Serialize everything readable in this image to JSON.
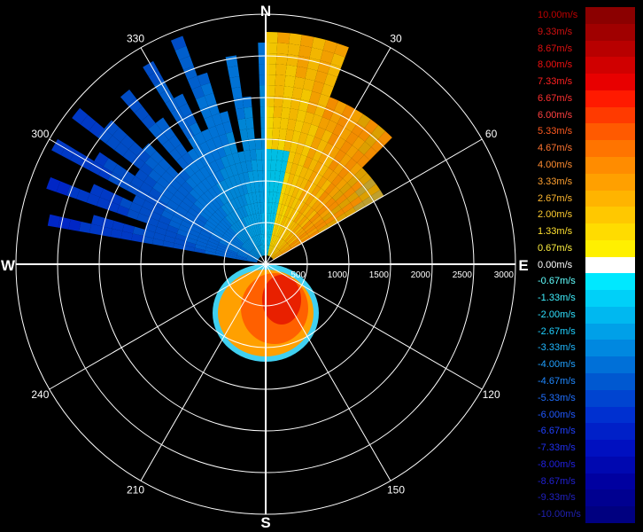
{
  "chart_data": {
    "type": "polar-radar",
    "compass": {
      "N": "N",
      "E": "E",
      "S": "S",
      "W": "W"
    },
    "angle_labels": [
      {
        "deg": 30,
        "text": "30"
      },
      {
        "deg": 60,
        "text": "60"
      },
      {
        "deg": 120,
        "text": "120"
      },
      {
        "deg": 150,
        "text": "150"
      },
      {
        "deg": 210,
        "text": "210"
      },
      {
        "deg": 240,
        "text": "240"
      },
      {
        "deg": 300,
        "text": "300"
      },
      {
        "deg": 330,
        "text": "330"
      }
    ],
    "range_ticks": [
      500,
      1000,
      1500,
      2000,
      2500,
      3000
    ],
    "range_max": 3000,
    "grid": true,
    "legend_position": "right",
    "legend": [
      {
        "label": "10.00m/s",
        "color": "#8b0000",
        "label_color": "#c00000"
      },
      {
        "label": "9.33m/s",
        "color": "#a00000",
        "label_color": "#d01010"
      },
      {
        "label": "8.67m/s",
        "color": "#b80000",
        "label_color": "#e01010"
      },
      {
        "label": "8.00m/s",
        "color": "#d00000",
        "label_color": "#f01010"
      },
      {
        "label": "7.33m/s",
        "color": "#e80000",
        "label_color": "#ff2020"
      },
      {
        "label": "6.67m/s",
        "color": "#ff1a00",
        "label_color": "#ff3030"
      },
      {
        "label": "6.00m/s",
        "color": "#ff3a00",
        "label_color": "#ff4040"
      },
      {
        "label": "5.33m/s",
        "color": "#ff5a00",
        "label_color": "#ff5a20"
      },
      {
        "label": "4.67m/s",
        "color": "#ff7400",
        "label_color": "#ff7430"
      },
      {
        "label": "4.00m/s",
        "color": "#ff8c00",
        "label_color": "#ff8c30"
      },
      {
        "label": "3.33m/s",
        "color": "#ffa000",
        "label_color": "#ffa030"
      },
      {
        "label": "2.67m/s",
        "color": "#ffb400",
        "label_color": "#ffb830"
      },
      {
        "label": "2.00m/s",
        "color": "#ffc800",
        "label_color": "#ffcc30"
      },
      {
        "label": "1.33m/s",
        "color": "#ffdc00",
        "label_color": "#ffe030"
      },
      {
        "label": "0.67m/s",
        "color": "#fff000",
        "label_color": "#fff040"
      },
      {
        "label": "0.00m/s",
        "color": "#ffffff",
        "label_color": "#ffffff"
      },
      {
        "label": "-0.67m/s",
        "color": "#00e8ff",
        "label_color": "#60ffff"
      },
      {
        "label": "-1.33m/s",
        "color": "#00d0f8",
        "label_color": "#40f0ff"
      },
      {
        "label": "-2.00m/s",
        "color": "#00b8f0",
        "label_color": "#30e0ff"
      },
      {
        "label": "-2.67m/s",
        "color": "#00a0e8",
        "label_color": "#20d0ff"
      },
      {
        "label": "-3.33m/s",
        "color": "#0088e0",
        "label_color": "#20b8ff"
      },
      {
        "label": "-4.00m/s",
        "color": "#0070d8",
        "label_color": "#20a0ff"
      },
      {
        "label": "-4.67m/s",
        "color": "#0058d0",
        "label_color": "#2088ff"
      },
      {
        "label": "-5.33m/s",
        "color": "#0044d0",
        "label_color": "#2070ff"
      },
      {
        "label": "-6.00m/s",
        "color": "#0030d0",
        "label_color": "#2058ff"
      },
      {
        "label": "-6.67m/s",
        "color": "#0020c8",
        "label_color": "#2040ff"
      },
      {
        "label": "-7.33m/s",
        "color": "#0010c0",
        "label_color": "#2030f0"
      },
      {
        "label": "-8.00m/s",
        "color": "#0008b0",
        "label_color": "#2020e0"
      },
      {
        "label": "-8.67m/s",
        "color": "#0000a0",
        "label_color": "#2020d0"
      },
      {
        "label": "-9.33m/s",
        "color": "#000090",
        "label_color": "#2020c0"
      },
      {
        "label": "-10.00m/s",
        "color": "#000080",
        "label_color": "#2020b0"
      }
    ]
  }
}
